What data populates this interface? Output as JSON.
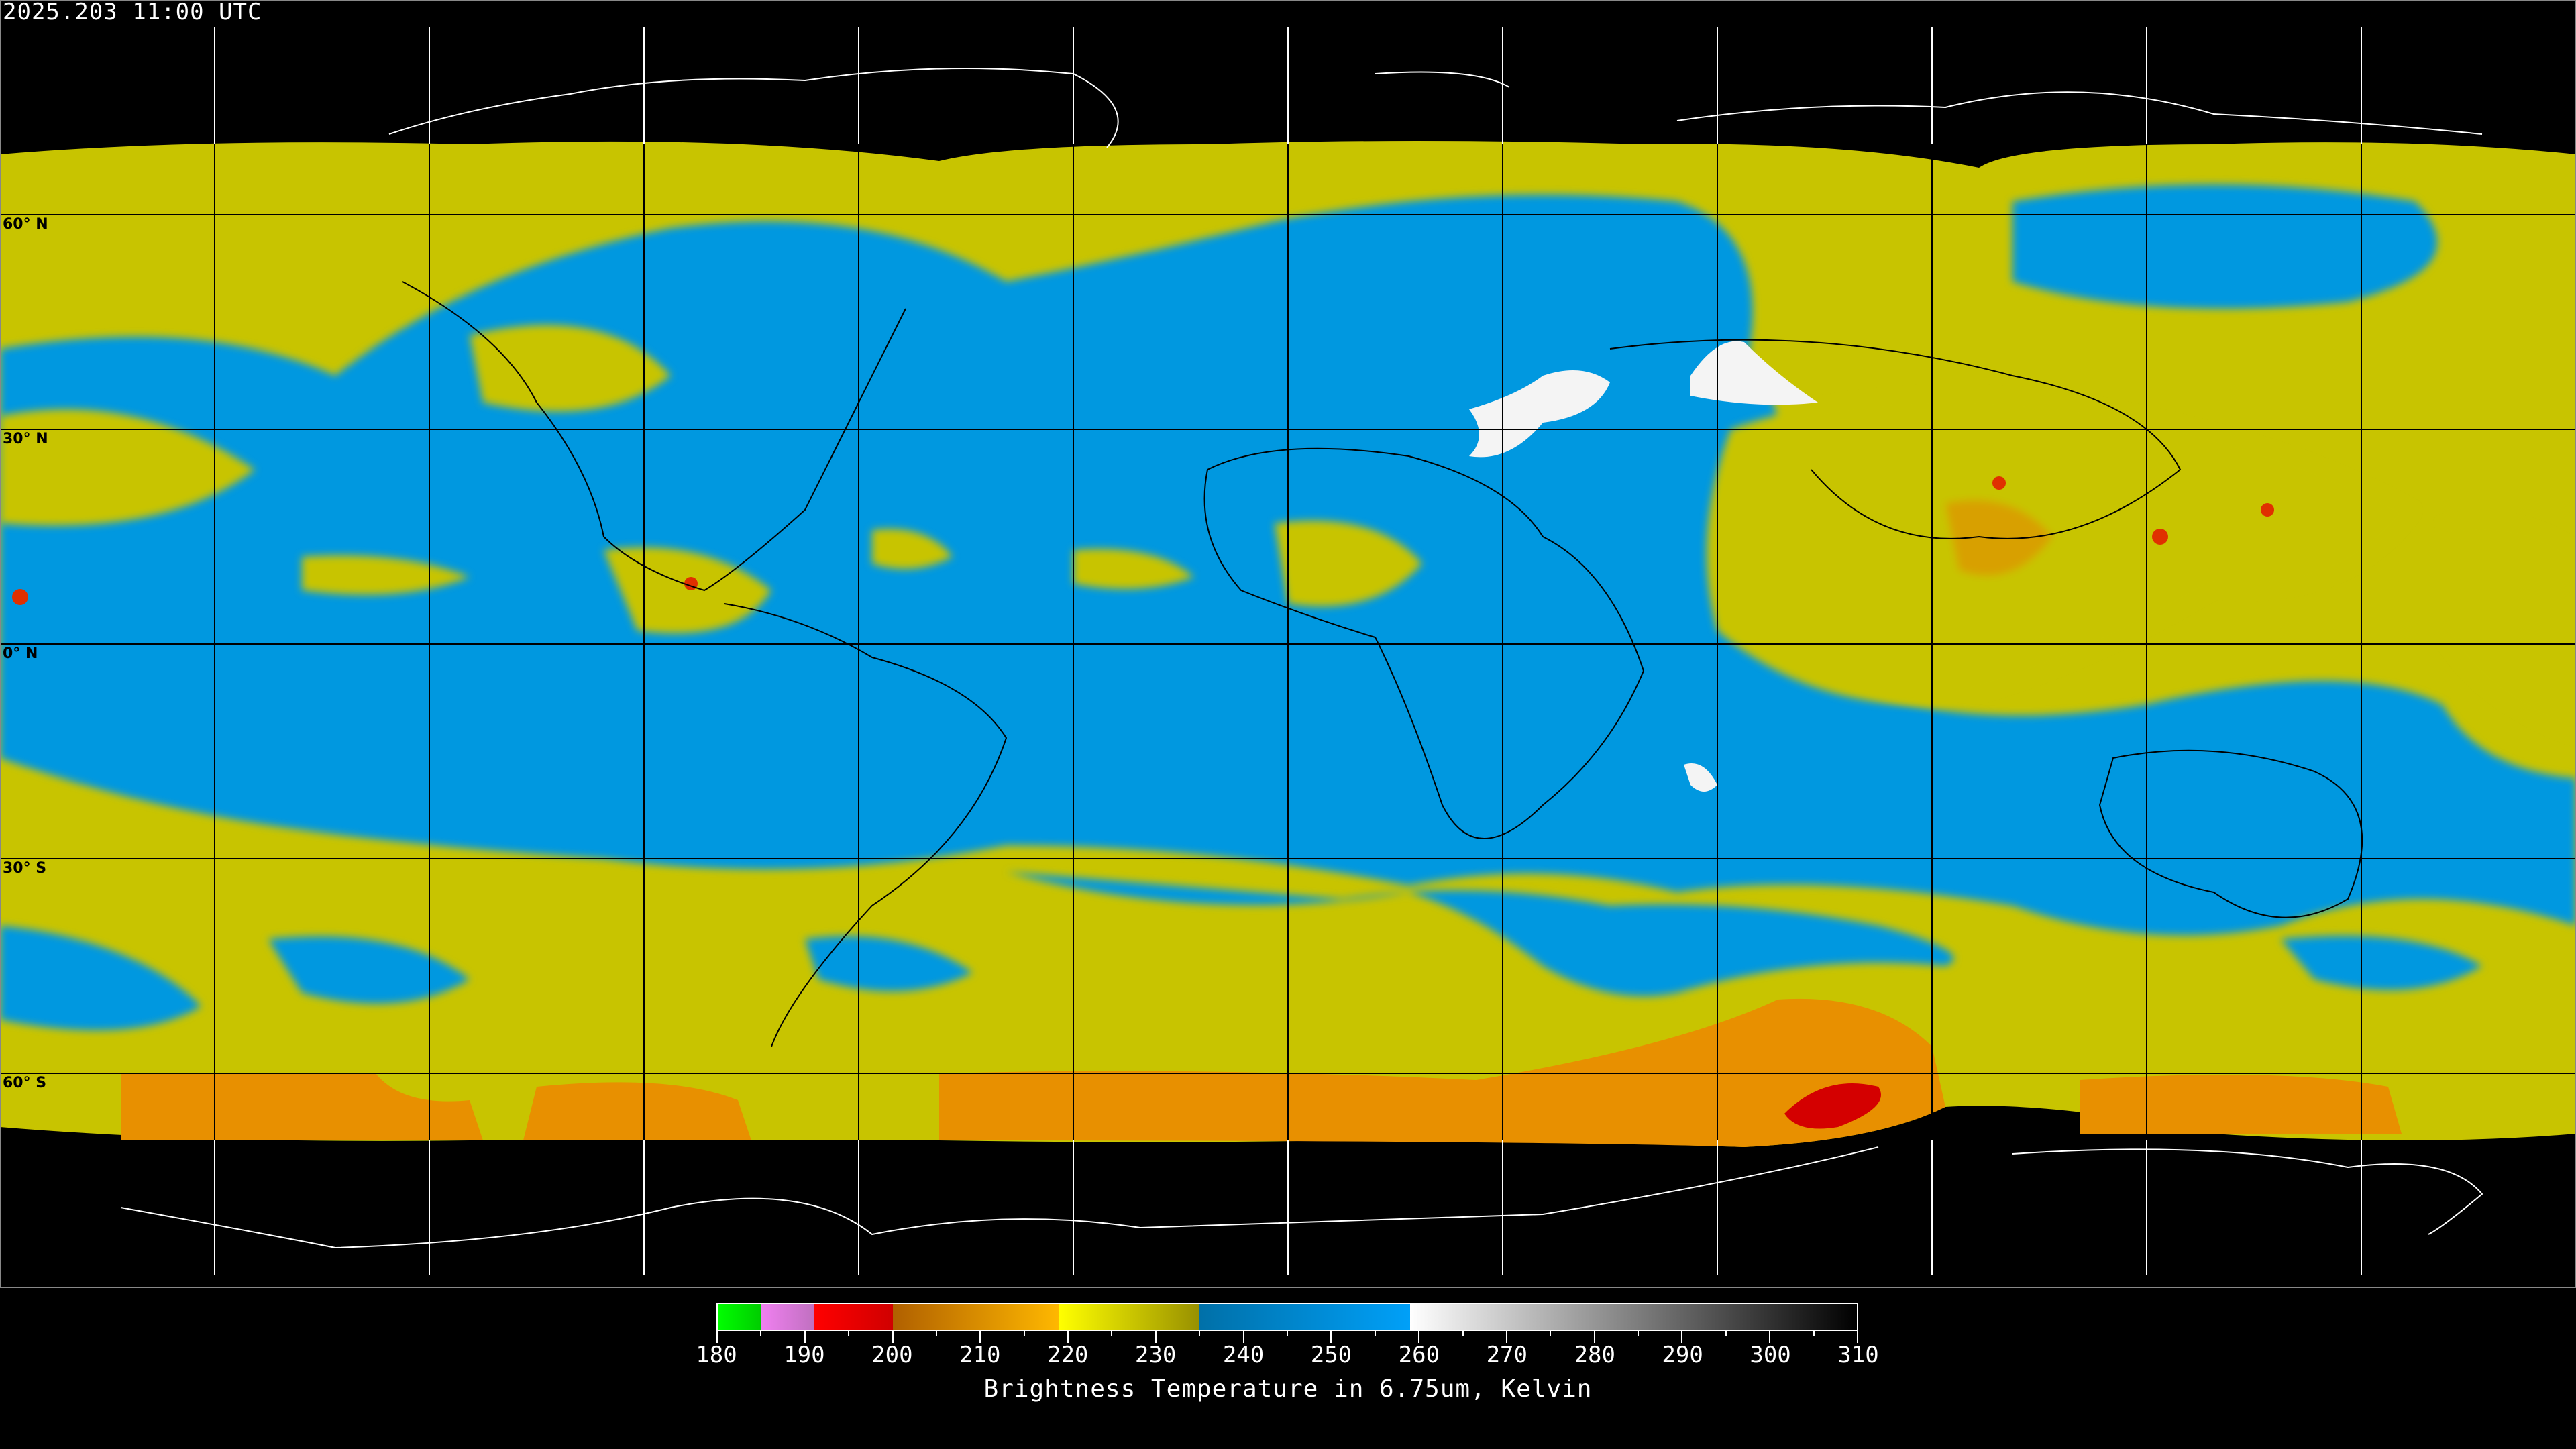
{
  "header": {
    "timestamp": "2025.203 11:00 UTC"
  },
  "map": {
    "projection": "equirectangular",
    "lat_labels": [
      "60° N",
      "30° N",
      "0° N",
      "30° S",
      "60° S"
    ],
    "colors": {
      "background": "#000000",
      "cold_cloud": "#c8c400",
      "dry": "#0098e0",
      "very_cold": "#e89000",
      "coastline": "#000000",
      "polar_coastline": "#ffffff",
      "grid": "#000000"
    }
  },
  "colorbar": {
    "title": "Brightness Temperature in 6.75um, Kelvin",
    "range": [
      180,
      310
    ],
    "tick_labels": [
      "180",
      "190",
      "200",
      "210",
      "220",
      "230",
      "240",
      "250",
      "260",
      "270",
      "280",
      "290",
      "300",
      "310"
    ],
    "segments": [
      {
        "from": 180,
        "to": 185,
        "colors": [
          "#00ff00",
          "#00cc00"
        ]
      },
      {
        "from": 185,
        "to": 191,
        "colors": [
          "#f080f0",
          "#c070c0"
        ]
      },
      {
        "from": 191,
        "to": 200,
        "colors": [
          "#ff0000",
          "#d00000"
        ]
      },
      {
        "from": 200,
        "to": 219,
        "colors": [
          "#b06000",
          "#ffb800"
        ]
      },
      {
        "from": 219,
        "to": 235,
        "colors": [
          "#ffff00",
          "#989000"
        ]
      },
      {
        "from": 235,
        "to": 259,
        "colors": [
          "#0070a8",
          "#00a0f8"
        ]
      },
      {
        "from": 259,
        "to": 310,
        "colors": [
          "#ffffff",
          "#000000"
        ]
      }
    ]
  }
}
